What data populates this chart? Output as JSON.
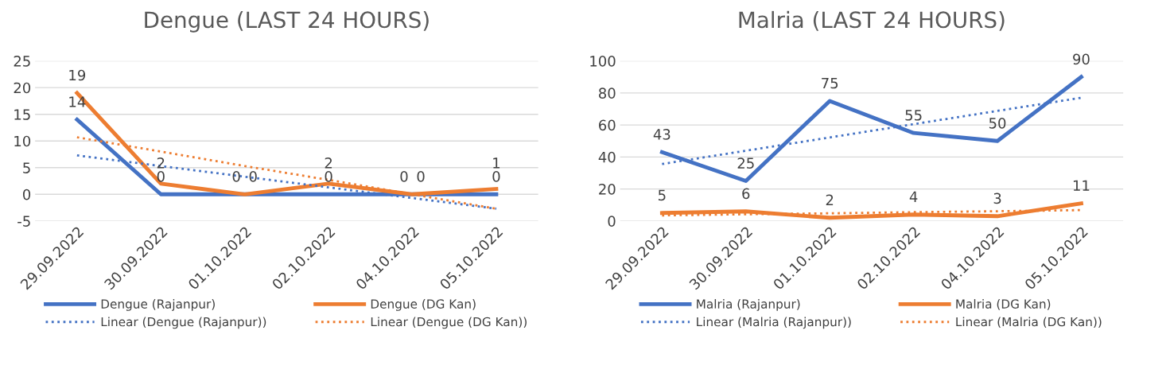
{
  "chart_data": [
    {
      "type": "line",
      "title": "Dengue (LAST 24 HOURS)",
      "categories": [
        "29.09.2022",
        "30.09.2022",
        "01.10.2022",
        "02.10.2022",
        "04.10.2022",
        "05.10.2022"
      ],
      "ylim": [
        -5,
        25
      ],
      "yticks": [
        -5,
        0,
        5,
        10,
        15,
        20,
        25
      ],
      "grid": "y",
      "legend": "bottom",
      "series": [
        {
          "name": "Dengue (Rajanpur)",
          "color": "#4472c4",
          "values": [
            14,
            0,
            0,
            0,
            0,
            0
          ],
          "value_labels": [
            "14",
            "0",
            "0",
            "0",
            "0",
            "0"
          ],
          "line_style": "solid"
        },
        {
          "name": "Dengue (DG Kan)",
          "color": "#ed7d31",
          "values": [
            19,
            2,
            0,
            2,
            0,
            1
          ],
          "value_labels": [
            "19",
            "2",
            "0",
            "2",
            "0",
            "1"
          ],
          "line_style": "solid"
        },
        {
          "name": "Linear (Dengue (Rajanpur))",
          "color": "#4472c4",
          "values": [
            7.3,
            5.3,
            3.3,
            1.3,
            -0.7,
            -2.7
          ],
          "line_style": "dotted"
        },
        {
          "name": "Linear (Dengue (DG Kan))",
          "color": "#ed7d31",
          "values": [
            10.7,
            8.0,
            5.3,
            2.7,
            0.0,
            -2.7
          ],
          "line_style": "dotted"
        }
      ]
    },
    {
      "type": "line",
      "title": "Malria (LAST 24 HOURS)",
      "categories": [
        "29.09.2022",
        "30.09.2022",
        "01.10.2022",
        "02.10.2022",
        "04.10.2022",
        "05.10.2022"
      ],
      "ylim": [
        0,
        100
      ],
      "yticks": [
        0,
        20,
        40,
        60,
        80,
        100
      ],
      "grid": "y",
      "legend": "bottom",
      "series": [
        {
          "name": "Malria (Rajanpur)",
          "color": "#4472c4",
          "values": [
            43,
            25,
            75,
            55,
            50,
            90
          ],
          "value_labels": [
            "43",
            "25",
            "75",
            "55",
            "50",
            "90"
          ],
          "line_style": "solid"
        },
        {
          "name": "Malria (DG Kan)",
          "color": "#ed7d31",
          "values": [
            5,
            6,
            2,
            4,
            3,
            11
          ],
          "value_labels": [
            "5",
            "6",
            "2",
            "4",
            "3",
            "11"
          ],
          "line_style": "solid"
        },
        {
          "name": "Linear (Malria (Rajanpur))",
          "color": "#4472c4",
          "values": [
            35.6,
            43.9,
            52.2,
            60.5,
            68.8,
            77.0
          ],
          "line_style": "dotted"
        },
        {
          "name": "Linear (Malria (DG Kan))",
          "color": "#ed7d31",
          "values": [
            3.5,
            4.2,
            4.8,
            5.5,
            6.1,
            6.8
          ],
          "line_style": "dotted"
        }
      ]
    }
  ]
}
